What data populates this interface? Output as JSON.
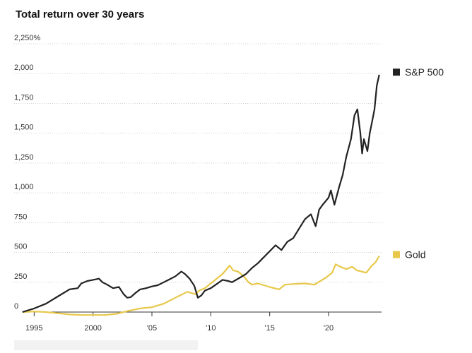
{
  "chart_data": {
    "type": "line",
    "title": "Total return over 30 years",
    "ylim": [
      0,
      2250
    ],
    "xlim": [
      1993.3,
      2024.5
    ],
    "y_ticks": [
      0,
      250,
      500,
      750,
      1000,
      1250,
      1500,
      1750,
      2000,
      2250
    ],
    "y_tick_labels": [
      "0",
      "250",
      "500",
      "750",
      "1,000",
      "1,250",
      "1,500",
      "1,750",
      "2,000",
      "2,250%"
    ],
    "x_ticks": [
      1995,
      2000,
      2005,
      2010,
      2015,
      2020
    ],
    "x_tick_labels": [
      "1995",
      "2000",
      "'05",
      "'10",
      "'15",
      "'20"
    ],
    "grid": "horizontal",
    "legend": "right",
    "series": [
      {
        "name": "S&P 500",
        "color": "#222222",
        "x": [
          1994.0,
          1995.0,
          1996.0,
          1997.0,
          1998.0,
          1998.7,
          1999.0,
          1999.5,
          2000.0,
          2000.5,
          2000.8,
          2001.2,
          2001.7,
          2002.2,
          2002.6,
          2002.9,
          2003.2,
          2003.6,
          2004.0,
          2004.5,
          2005.0,
          2005.5,
          2006.0,
          2006.5,
          2007.0,
          2007.5,
          2007.8,
          2008.2,
          2008.6,
          2008.9,
          2009.2,
          2009.5,
          2010.0,
          2010.5,
          2011.0,
          2011.5,
          2011.8,
          2012.5,
          2013.0,
          2013.5,
          2014.0,
          2014.5,
          2015.0,
          2015.5,
          2016.0,
          2016.5,
          2017.0,
          2017.5,
          2018.0,
          2018.5,
          2018.9,
          2019.2,
          2019.5,
          2020.0,
          2020.2,
          2020.5,
          2020.9,
          2021.2,
          2021.5,
          2021.9,
          2022.2,
          2022.45,
          2022.7,
          2022.85,
          2023.0,
          2023.3,
          2023.5,
          2023.7,
          2023.9,
          2024.1,
          2024.3
        ],
        "values": [
          0,
          30,
          70,
          130,
          190,
          200,
          240,
          260,
          270,
          280,
          250,
          230,
          200,
          210,
          150,
          120,
          125,
          160,
          190,
          200,
          215,
          225,
          250,
          275,
          300,
          340,
          320,
          280,
          220,
          120,
          140,
          180,
          200,
          235,
          270,
          260,
          250,
          290,
          320,
          370,
          410,
          460,
          510,
          560,
          520,
          590,
          620,
          700,
          780,
          820,
          720,
          860,
          900,
          960,
          1020,
          900,
          1050,
          1150,
          1300,
          1450,
          1650,
          1700,
          1500,
          1330,
          1450,
          1350,
          1500,
          1600,
          1700,
          1900,
          1990
        ]
      },
      {
        "name": "Gold",
        "color": "#e8c84a",
        "x": [
          1994.0,
          1995.0,
          1996.0,
          1997.0,
          1998.0,
          1999.0,
          2000.0,
          2001.0,
          2002.0,
          2003.0,
          2004.0,
          2005.0,
          2006.0,
          2007.0,
          2008.0,
          2008.7,
          2009.0,
          2009.5,
          2010.0,
          2010.5,
          2011.0,
          2011.6,
          2011.9,
          2012.3,
          2012.8,
          2013.2,
          2013.5,
          2014.0,
          2015.0,
          2015.8,
          2016.3,
          2017.0,
          2018.0,
          2018.8,
          2019.3,
          2019.8,
          2020.3,
          2020.6,
          2021.0,
          2021.5,
          2022.0,
          2022.4,
          2022.8,
          2023.2,
          2023.6,
          2024.0,
          2024.3
        ],
        "values": [
          0,
          5,
          0,
          -10,
          -20,
          -25,
          -25,
          -25,
          -15,
          10,
          30,
          40,
          70,
          120,
          170,
          150,
          180,
          200,
          240,
          280,
          320,
          390,
          350,
          340,
          300,
          250,
          230,
          240,
          210,
          190,
          230,
          235,
          240,
          230,
          260,
          290,
          330,
          400,
          380,
          360,
          380,
          350,
          340,
          330,
          380,
          420,
          470
        ]
      }
    ]
  }
}
